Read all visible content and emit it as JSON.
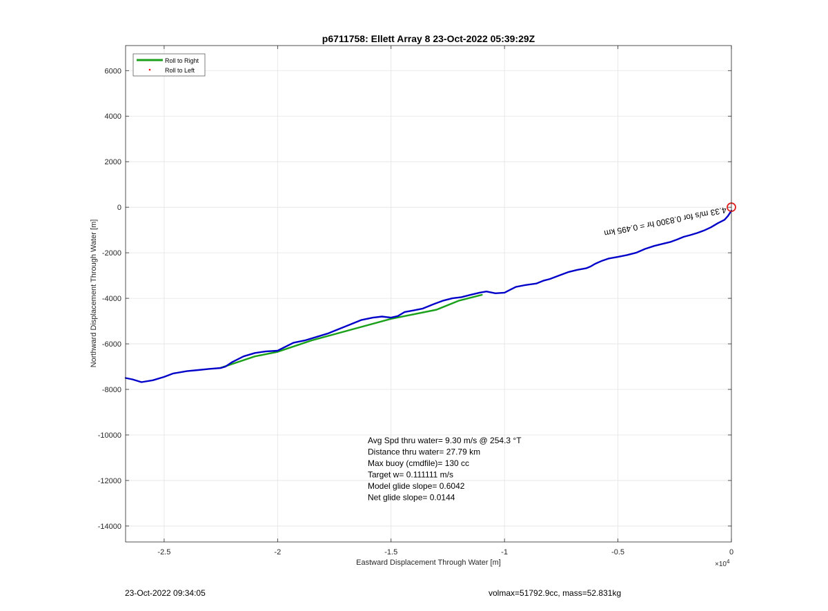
{
  "chart_data": {
    "type": "line",
    "title": "p6711758: Ellett Array 8 23-Oct-2022 05:39:29Z",
    "xlabel": "Eastward Displacement Through Water [m]",
    "ylabel": "Northward Displacement Through Water [m]",
    "x_exponent_label": "×10",
    "x_exponent_power": "4",
    "xlim": [
      -26700,
      0
    ],
    "ylim": [
      -14700,
      7100
    ],
    "x_ticks": [
      -25000,
      -20000,
      -15000,
      -10000,
      -5000,
      0
    ],
    "x_tick_labels": [
      "-2.5",
      "-2",
      "-1.5",
      "-1",
      "-0.5",
      "0"
    ],
    "y_ticks": [
      6000,
      4000,
      2000,
      0,
      -2000,
      -4000,
      -6000,
      -8000,
      -10000,
      -12000,
      -14000
    ],
    "y_tick_labels": [
      "6000",
      "4000",
      "2000",
      "0",
      "-2000",
      "-4000",
      "-6000",
      "-8000",
      "-10000",
      "-12000",
      "-14000"
    ],
    "grid": true,
    "legend_position": "top-left",
    "series": [
      {
        "name": "Roll to Right",
        "color": "#1aa01a",
        "x": [
          -22500,
          -21000,
          -20000,
          -18500,
          -15000,
          -13000,
          -12000,
          -11000
        ],
        "y": [
          -7050,
          -6550,
          -6350,
          -5850,
          -4900,
          -4500,
          -4100,
          -3850
        ]
      },
      {
        "name": "Roll to Left",
        "color": "#ff0000",
        "x": [],
        "y": []
      },
      {
        "color": "#0000c8",
        "x": [
          -26700,
          -26400,
          -26000,
          -25500,
          -25000,
          -24600,
          -24000,
          -23500,
          -23000,
          -22500,
          -22300,
          -22000,
          -21500,
          -21000,
          -20500,
          -20000,
          -19700,
          -19300,
          -18800,
          -18300,
          -17800,
          -17300,
          -16800,
          -16300,
          -15800,
          -15400,
          -15000,
          -14700,
          -14400,
          -14000,
          -13600,
          -13100,
          -12700,
          -12300,
          -11900,
          -11500,
          -11100,
          -10800,
          -10400,
          -10000,
          -9800,
          -9500,
          -9100,
          -8600,
          -8300,
          -8000,
          -7600,
          -7200,
          -6800,
          -6400,
          -6200,
          -6000,
          -5700,
          -5400,
          -5000,
          -4600,
          -4200,
          -3800,
          -3400,
          -3000,
          -2700,
          -2400,
          -2100,
          -1800,
          -1500,
          -1200,
          -900,
          -600,
          -300,
          -150,
          0
        ],
        "y": [
          -7500,
          -7560,
          -7680,
          -7600,
          -7450,
          -7300,
          -7200,
          -7150,
          -7100,
          -7060,
          -7000,
          -6800,
          -6550,
          -6400,
          -6330,
          -6300,
          -6150,
          -5950,
          -5850,
          -5700,
          -5550,
          -5350,
          -5150,
          -4950,
          -4850,
          -4800,
          -4850,
          -4780,
          -4600,
          -4530,
          -4450,
          -4250,
          -4100,
          -4000,
          -3950,
          -3850,
          -3750,
          -3700,
          -3780,
          -3750,
          -3650,
          -3500,
          -3420,
          -3350,
          -3230,
          -3150,
          -3000,
          -2850,
          -2750,
          -2680,
          -2600,
          -2480,
          -2350,
          -2250,
          -2180,
          -2100,
          -2000,
          -1830,
          -1700,
          -1600,
          -1530,
          -1420,
          -1300,
          -1220,
          -1130,
          -1020,
          -880,
          -700,
          -550,
          -380,
          -150
        ]
      }
    ],
    "markers": [
      {
        "type": "circle",
        "x": 0,
        "y": 0,
        "color": "#e0201c"
      }
    ],
    "annotations": [
      {
        "text": "Distance thru water=",
        "value_text": "27.79 km",
        "anchor_x": 0,
        "anchor_y": 0,
        "rotated_label": "4.33 m/s for 0.8300 hr = 0.495 km"
      }
    ],
    "stats_box": [
      "Avg Spd thru water=  9.30 m/s @ 254.3 °T",
      "Distance thru water= 27.79 km",
      "Max buoy (cmdfile)= 130 cc",
      "Target w= 0.111111 m/s",
      "Model glide slope= 0.6042",
      "Net glide slope= 0.0144"
    ]
  },
  "footer": {
    "timestamp": "23-Oct-2022 09:34:05",
    "vol_mass": "volmax=51792.9cc, mass=52.831kg"
  }
}
